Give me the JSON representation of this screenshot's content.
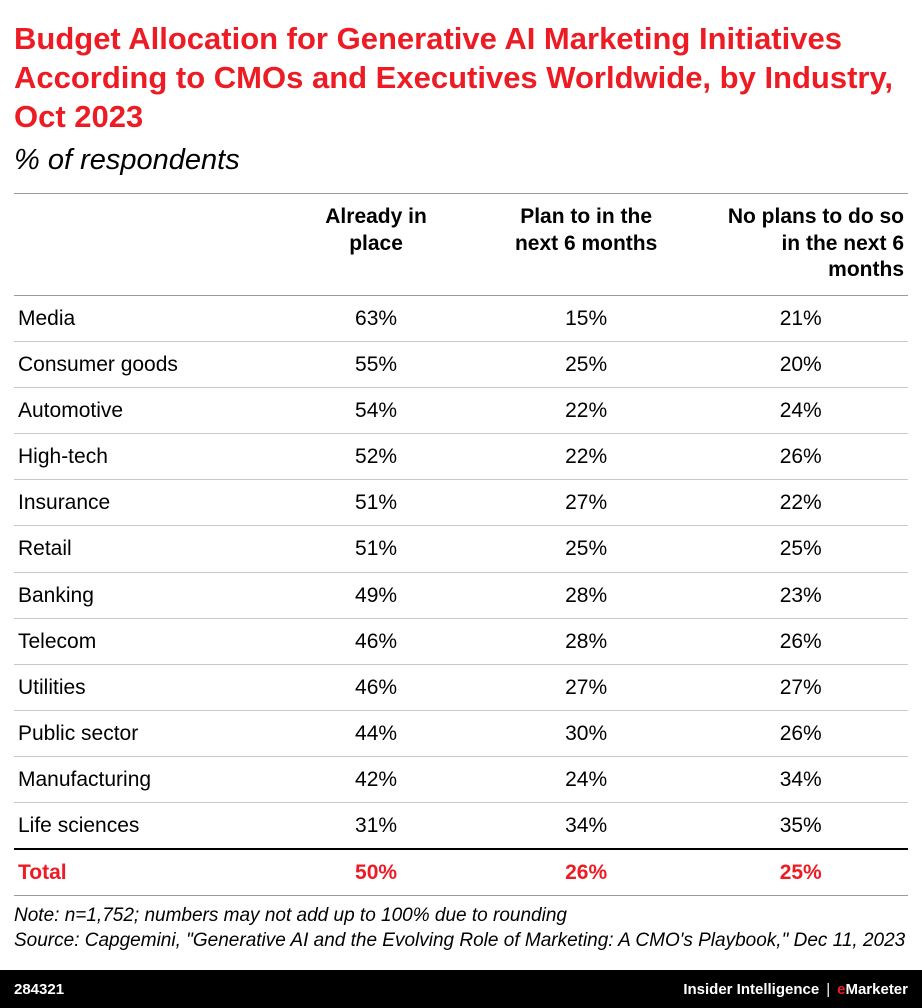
{
  "colors": {
    "accent_red": "#ed1c24",
    "footer_bg": "#000000",
    "row_line": "#c9c9c9",
    "header_line": "#9b9b9b"
  },
  "chart_data": {
    "type": "table",
    "title": "Budget Allocation for Generative AI Marketing Initiatives According to CMOs and Executives Worldwide, by Industry, Oct 2023",
    "subtitle": "% of respondents",
    "columns": [
      "Already in place",
      "Plan to in the next 6 months",
      "No plans to do so in the next 6 months"
    ],
    "rows": [
      {
        "industry": "Media",
        "values": [
          "63%",
          "15%",
          "21%"
        ]
      },
      {
        "industry": "Consumer goods",
        "values": [
          "55%",
          "25%",
          "20%"
        ]
      },
      {
        "industry": "Automotive",
        "values": [
          "54%",
          "22%",
          "24%"
        ]
      },
      {
        "industry": "High-tech",
        "values": [
          "52%",
          "22%",
          "26%"
        ]
      },
      {
        "industry": "Insurance",
        "values": [
          "51%",
          "27%",
          "22%"
        ]
      },
      {
        "industry": "Retail",
        "values": [
          "51%",
          "25%",
          "25%"
        ]
      },
      {
        "industry": "Banking",
        "values": [
          "49%",
          "28%",
          "23%"
        ]
      },
      {
        "industry": "Telecom",
        "values": [
          "46%",
          "28%",
          "26%"
        ]
      },
      {
        "industry": "Utilities",
        "values": [
          "46%",
          "27%",
          "27%"
        ]
      },
      {
        "industry": "Public sector",
        "values": [
          "44%",
          "30%",
          "26%"
        ]
      },
      {
        "industry": "Manufacturing",
        "values": [
          "42%",
          "24%",
          "34%"
        ]
      },
      {
        "industry": "Life sciences",
        "values": [
          "31%",
          "34%",
          "35%"
        ]
      }
    ],
    "total": {
      "label": "Total",
      "values": [
        "50%",
        "26%",
        "25%"
      ]
    }
  },
  "notes": {
    "note": "Note: n=1,752; numbers may not add up to 100% due to rounding",
    "source": "Source: Capgemini, \"Generative AI and the Evolving Role of Marketing: A CMO's Playbook,\" Dec 11, 2023"
  },
  "footer": {
    "chart_id": "284321",
    "brand_left": "Insider Intelligence",
    "pipe": "|",
    "brand_e": "e",
    "brand_rest": "Marketer"
  }
}
